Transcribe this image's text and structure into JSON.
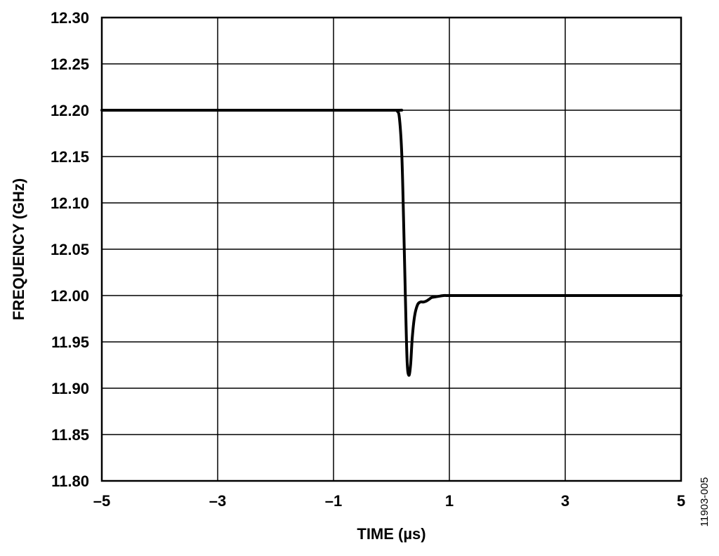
{
  "chart_data": {
    "type": "line",
    "xlabel": "TIME (µs)",
    "ylabel": "FREQUENCY (GHz)",
    "xlim": [
      -5,
      5
    ],
    "ylim": [
      11.8,
      12.3
    ],
    "grid": true,
    "x_ticks": [
      -5,
      -3,
      -1,
      1,
      3,
      5
    ],
    "x_tick_labels": [
      "–5",
      "–3",
      "–1",
      "1",
      "3",
      "5"
    ],
    "y_ticks": [
      11.8,
      11.85,
      11.9,
      11.95,
      12.0,
      12.05,
      12.1,
      12.15,
      12.2,
      12.25,
      12.3
    ],
    "y_tick_labels": [
      "11.80",
      "11.85",
      "11.90",
      "11.95",
      "12.00",
      "12.05",
      "12.10",
      "12.15",
      "12.20",
      "12.25",
      "12.30"
    ],
    "series": [
      {
        "color": "#000000",
        "x": [
          -5,
          -2,
          0,
          0.1,
          0.14,
          0.18,
          0.21,
          0.24,
          0.27,
          0.3,
          0.33,
          0.36,
          0.4,
          0.45,
          0.5,
          0.55,
          0.6,
          0.65,
          0.7,
          0.8,
          0.9,
          1.0,
          1.5,
          3,
          5
        ],
        "y": [
          12.2,
          12.2,
          12.2,
          12.199,
          12.19,
          12.15,
          12.08,
          12.0,
          11.93,
          11.914,
          11.925,
          11.955,
          11.978,
          11.99,
          11.993,
          11.993,
          11.994,
          11.996,
          11.998,
          11.999,
          12.0,
          12.0,
          12.0,
          12.0,
          12.0
        ]
      }
    ]
  },
  "figure_id": "11903-005"
}
